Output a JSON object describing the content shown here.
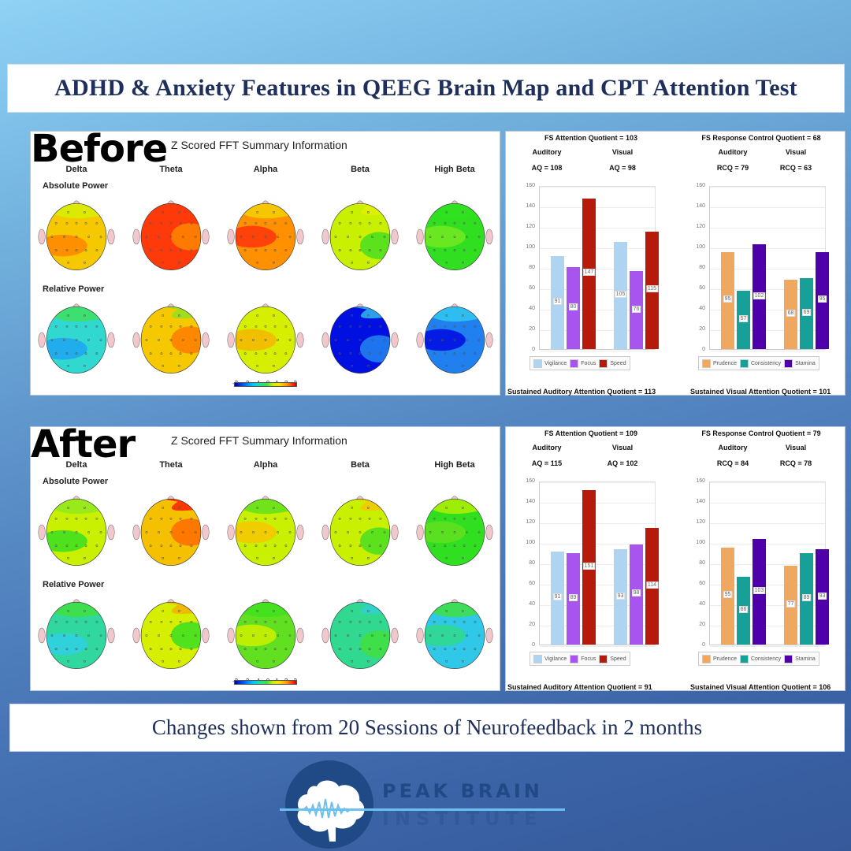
{
  "header": {
    "title": "ADHD & Anxiety Features in QEEG Brain Map and CPT Attention Test"
  },
  "footer": {
    "caption": "Changes shown from 20 Sessions of Neurofeedback in 2 months"
  },
  "logo": {
    "line1": "PEAK BRAIN",
    "line2": "INSTITUTE",
    "icon": "brain-wave-icon"
  },
  "qeeg": {
    "title": "Z Scored FFT Summary Information",
    "bands": [
      "Delta",
      "Theta",
      "Alpha",
      "Beta",
      "High Beta"
    ],
    "rows": [
      "Absolute Power",
      "Relative Power"
    ],
    "colorbar_ticks": [
      "-3",
      "-2",
      "-1",
      "0",
      "1",
      "2",
      "3"
    ],
    "before": {
      "label": "Before",
      "absolute": [
        {
          "base": "#f5c800",
          "accent": "#ff8a00",
          "accent2": "#d6f000"
        },
        {
          "base": "#ff3a0a",
          "accent": "#ff8200",
          "accent2": "#ff3a0a"
        },
        {
          "base": "#ff9000",
          "accent": "#ff3a0a",
          "accent2": "#f5d000"
        },
        {
          "base": "#c8f000",
          "accent": "#50e020",
          "accent2": "#e0f000"
        },
        {
          "base": "#30e020",
          "accent": "#70e820",
          "accent2": "#30e020"
        }
      ],
      "relative": [
        {
          "base": "#30d8d0",
          "accent": "#20a8f0",
          "accent2": "#40e060"
        },
        {
          "base": "#f5c800",
          "accent": "#ff8000",
          "accent2": "#90e020"
        },
        {
          "base": "#d6ee00",
          "accent": "#f5b800",
          "accent2": "#d6ee00"
        },
        {
          "base": "#0010e0",
          "accent": "#2080f0",
          "accent2": "#30b8f0"
        },
        {
          "base": "#2080f0",
          "accent": "#0010e0",
          "accent2": "#30c8f0"
        }
      ]
    },
    "after": {
      "label": "After",
      "absolute": [
        {
          "base": "#c8f000",
          "accent": "#40e020",
          "accent2": "#90e820"
        },
        {
          "base": "#f5c000",
          "accent": "#ff7000",
          "accent2": "#ff2000"
        },
        {
          "base": "#c8f000",
          "accent": "#f5c800",
          "accent2": "#60e020"
        },
        {
          "base": "#c8f000",
          "accent": "#50e020",
          "accent2": "#f5c800"
        },
        {
          "base": "#30e020",
          "accent": "#60e020",
          "accent2": "#b0f000"
        }
      ],
      "relative": [
        {
          "base": "#30d8a0",
          "accent": "#30d0e0",
          "accent2": "#40e040"
        },
        {
          "base": "#d6ee00",
          "accent": "#40e020",
          "accent2": "#f5b000"
        },
        {
          "base": "#60e020",
          "accent": "#c8f000",
          "accent2": "#40e020"
        },
        {
          "base": "#30d890",
          "accent": "#40e040",
          "accent2": "#30d0d0"
        },
        {
          "base": "#30c8e8",
          "accent": "#30d890",
          "accent2": "#40e040"
        }
      ]
    }
  },
  "cpt": {
    "before": {
      "attention": {
        "heading": "FS Attention Quotient = 103",
        "left_label": "Auditory",
        "right_label": "Visual",
        "left_q": "AQ = 108",
        "right_q": "AQ = 98",
        "footer": "Sustained Auditory Attention Quotient = 113"
      },
      "response": {
        "heading": "FS Response Control Quotient = 68",
        "left_label": "Auditory",
        "right_label": "Visual",
        "left_q": "RCQ = 79",
        "right_q": "RCQ = 63",
        "footer": "Sustained Visual Attention Quotient = 101"
      }
    },
    "after": {
      "attention": {
        "heading": "FS Attention Quotient = 109",
        "left_label": "Auditory",
        "right_label": "Visual",
        "left_q": "AQ = 115",
        "right_q": "AQ = 102",
        "footer": "Sustained Auditory Attention Quotient = 91"
      },
      "response": {
        "heading": "FS Response Control Quotient = 79",
        "left_label": "Auditory",
        "right_label": "Visual",
        "left_q": "RCQ = 84",
        "right_q": "RCQ = 78",
        "footer": "Sustained Visual Attention Quotient = 106"
      }
    },
    "yticks": [
      "160",
      "140",
      "120",
      "100",
      "80",
      "60",
      "40",
      "20",
      "0"
    ],
    "legend_attention": [
      {
        "label": "Vigilance",
        "color": "#aed4f2"
      },
      {
        "label": "Focus",
        "color": "#a855f0"
      },
      {
        "label": "Speed",
        "color": "#b51a0a"
      }
    ],
    "legend_response": [
      {
        "label": "Prudence",
        "color": "#f0a860"
      },
      {
        "label": "Consistency",
        "color": "#17a098"
      },
      {
        "label": "Stamina",
        "color": "#5000a8"
      }
    ]
  },
  "chart_data": [
    {
      "type": "bar",
      "title": "Before — FS Attention Quotient = 103",
      "categories": [
        "Auditory (AQ = 108)",
        "Visual (AQ = 98)"
      ],
      "series": [
        {
          "name": "Vigilance",
          "values": [
            91,
            105
          ]
        },
        {
          "name": "Focus",
          "values": [
            80,
            76
          ]
        },
        {
          "name": "Speed",
          "values": [
            147,
            115
          ]
        }
      ],
      "ylim": [
        0,
        160
      ],
      "yticks": [
        0,
        20,
        40,
        60,
        80,
        100,
        120,
        140,
        160
      ],
      "grid": true,
      "legend_position": "bottom",
      "footer": "Sustained Auditory Attention Quotient = 113"
    },
    {
      "type": "bar",
      "title": "Before — FS Response Control Quotient = 68",
      "categories": [
        "Auditory (RCQ = 79)",
        "Visual (RCQ = 63)"
      ],
      "series": [
        {
          "name": "Prudence",
          "values": [
            95,
            68
          ]
        },
        {
          "name": "Consistency",
          "values": [
            57,
            69
          ]
        },
        {
          "name": "Stamina",
          "values": [
            102,
            95
          ]
        }
      ],
      "ylim": [
        0,
        160
      ],
      "yticks": [
        0,
        20,
        40,
        60,
        80,
        100,
        120,
        140,
        160
      ],
      "grid": true,
      "legend_position": "bottom",
      "footer": "Sustained Visual Attention Quotient = 101"
    },
    {
      "type": "bar",
      "title": "After — FS Attention Quotient = 109",
      "categories": [
        "Auditory (AQ = 115)",
        "Visual (AQ = 102)"
      ],
      "series": [
        {
          "name": "Vigilance",
          "values": [
            91,
            93
          ]
        },
        {
          "name": "Focus",
          "values": [
            89,
            98
          ]
        },
        {
          "name": "Speed",
          "values": [
            151,
            114
          ]
        }
      ],
      "ylim": [
        0,
        160
      ],
      "yticks": [
        0,
        20,
        40,
        60,
        80,
        100,
        120,
        140,
        160
      ],
      "grid": true,
      "legend_position": "bottom",
      "footer": "Sustained Auditory Attention Quotient = 91"
    },
    {
      "type": "bar",
      "title": "After — FS Response Control Quotient = 79",
      "categories": [
        "Auditory (RCQ = 84)",
        "Visual (RCQ = 78)"
      ],
      "series": [
        {
          "name": "Prudence",
          "values": [
            95,
            77
          ]
        },
        {
          "name": "Consistency",
          "values": [
            66,
            89
          ]
        },
        {
          "name": "Stamina",
          "values": [
            103,
            93
          ]
        }
      ],
      "ylim": [
        0,
        160
      ],
      "yticks": [
        0,
        20,
        40,
        60,
        80,
        100,
        120,
        140,
        160
      ],
      "grid": true,
      "legend_position": "bottom",
      "footer": "Sustained Visual Attention Quotient = 106"
    },
    {
      "type": "heatmap",
      "title": "Z Scored FFT Summary Information (QEEG topographic maps)",
      "rows": [
        "Absolute Power",
        "Relative Power"
      ],
      "columns": [
        "Delta",
        "Theta",
        "Alpha",
        "Beta",
        "High Beta"
      ],
      "colorbar": {
        "min": -3,
        "max": 3,
        "ticks": [
          -3,
          -2,
          -1,
          0,
          1,
          2,
          3
        ]
      },
      "before_approx_z": [
        [
          1.5,
          3,
          2.5,
          0.5,
          -0.3
        ],
        [
          -1.5,
          1.5,
          1,
          -3,
          -2.5
        ]
      ],
      "after_approx_z": [
        [
          0.8,
          1.8,
          0.8,
          0.6,
          -0.2
        ],
        [
          -1,
          0.8,
          0.2,
          -0.8,
          -1.3
        ]
      ]
    }
  ]
}
